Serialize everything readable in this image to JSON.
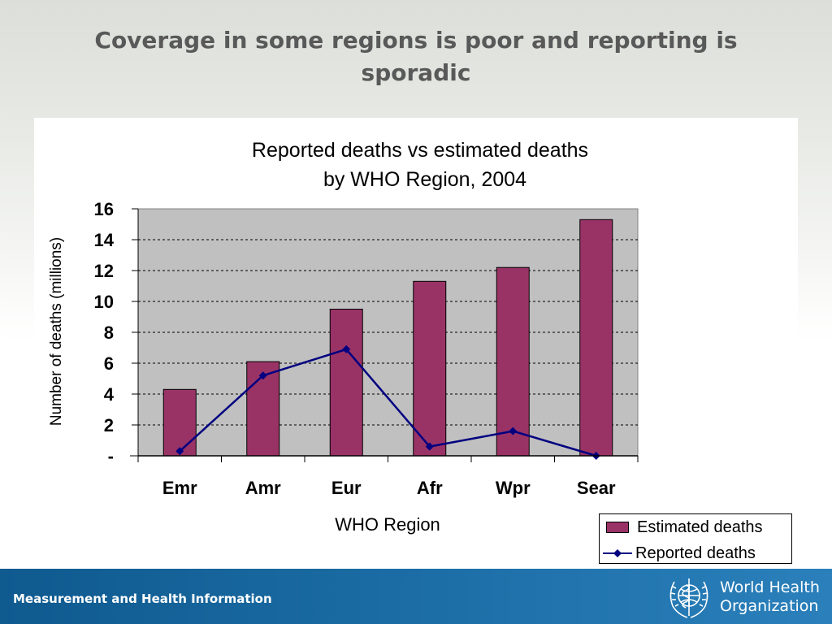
{
  "slide": {
    "title": "Coverage in some regions is poor and reporting is sporadic",
    "footer_text": "Measurement and Health Information",
    "org_line1": "World Health",
    "org_line2": "Organization",
    "org_logo_icon": "who-emblem-icon"
  },
  "chart_data": {
    "type": "bar",
    "title": "Reported deaths vs estimated deaths",
    "subtitle": "by WHO Region,  2004",
    "xlabel": "WHO Region",
    "ylabel": "Number of deaths (millions)",
    "ylim": [
      0,
      16
    ],
    "yticks": [
      0,
      2,
      4,
      6,
      8,
      10,
      12,
      14,
      16
    ],
    "ytick_labels": [
      "-",
      "2",
      "4",
      "6",
      "8",
      "10",
      "12",
      "14",
      "16"
    ],
    "grid": true,
    "legend_position": "bottom-right",
    "categories": [
      "Emr",
      "Amr",
      "Eur",
      "Afr",
      "Wpr",
      "Sear"
    ],
    "series": [
      {
        "name": "Estimated deaths",
        "type": "bar",
        "color": "#993366",
        "values": [
          4.3,
          6.1,
          9.5,
          11.3,
          12.2,
          15.3
        ]
      },
      {
        "name": "Reported deaths",
        "type": "line",
        "color": "#000080",
        "values": [
          0.3,
          5.2,
          6.9,
          0.6,
          1.6,
          0.0
        ]
      }
    ]
  }
}
